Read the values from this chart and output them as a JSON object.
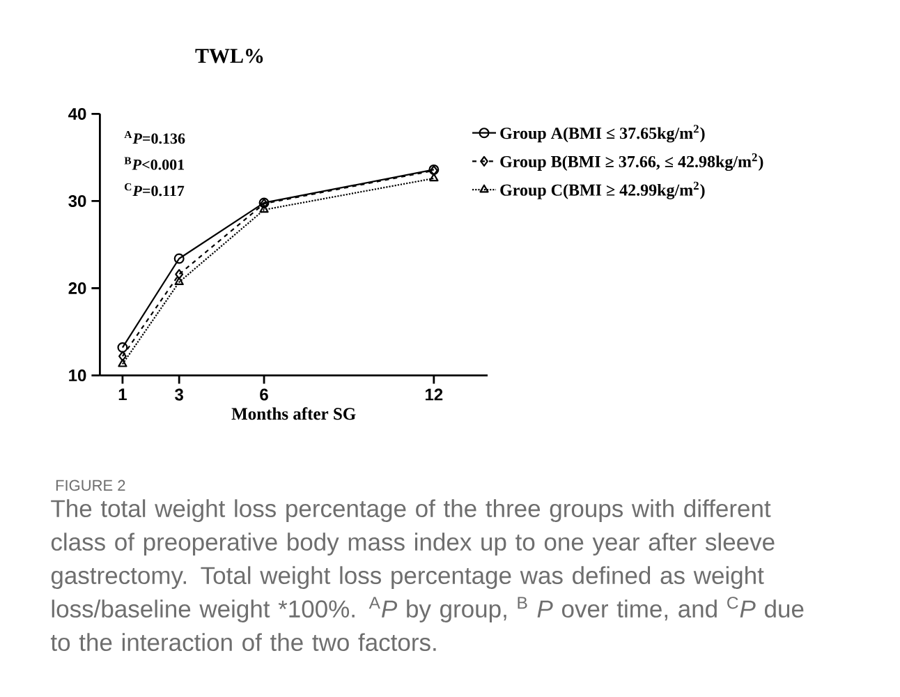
{
  "chart_data": {
    "type": "line",
    "title": "TWL%",
    "xlabel": "Months after SG",
    "x": [
      1,
      3,
      6,
      12
    ],
    "xlim": [
      0.2,
      13.9
    ],
    "xticks": [
      1,
      3,
      6,
      12
    ],
    "ylim": [
      10,
      40
    ],
    "yticks": [
      10,
      20,
      30,
      40
    ],
    "grid": false,
    "legend": "top right",
    "series": [
      {
        "name": "Group A(BMI ≤ 37.65kg/m$^{2}$)",
        "color": "#000000",
        "marker": "circle",
        "line_style": "solid",
        "values": [
          13.2,
          23.4,
          29.8,
          33.6
        ]
      },
      {
        "name": "Group B(BMI ≥ 37.66, ≤ 42.98kg/m$^{2}$)",
        "color": "#000000",
        "marker": "diamond",
        "line_style": "dashed",
        "values": [
          12.2,
          21.6,
          29.7,
          33.5
        ]
      },
      {
        "name": "Group C(BMI ≥ 42.99kg/m$^{2}$)",
        "color": "#000000",
        "marker": "triangle",
        "line_style": "dotted",
        "values": [
          11.3,
          20.7,
          29.0,
          32.6
        ]
      }
    ],
    "annotations": [
      "$^{A}$*P*=0.136",
      "$^{B}$*P*<0.001",
      "$^{C}$*P*=0.117",
      "FIGURE 2",
      "The total weight loss percentage of the three groups with different class of preoperative body mass index up to one year after sleeve gastrectomy. Total weight loss percentage was defined as weight loss/baseline weight *100%. $^{A}$*P* by group, $^{B}$ *P* over time, and $^{C}$*P* due to the interaction of the two factors."
    ]
  }
}
